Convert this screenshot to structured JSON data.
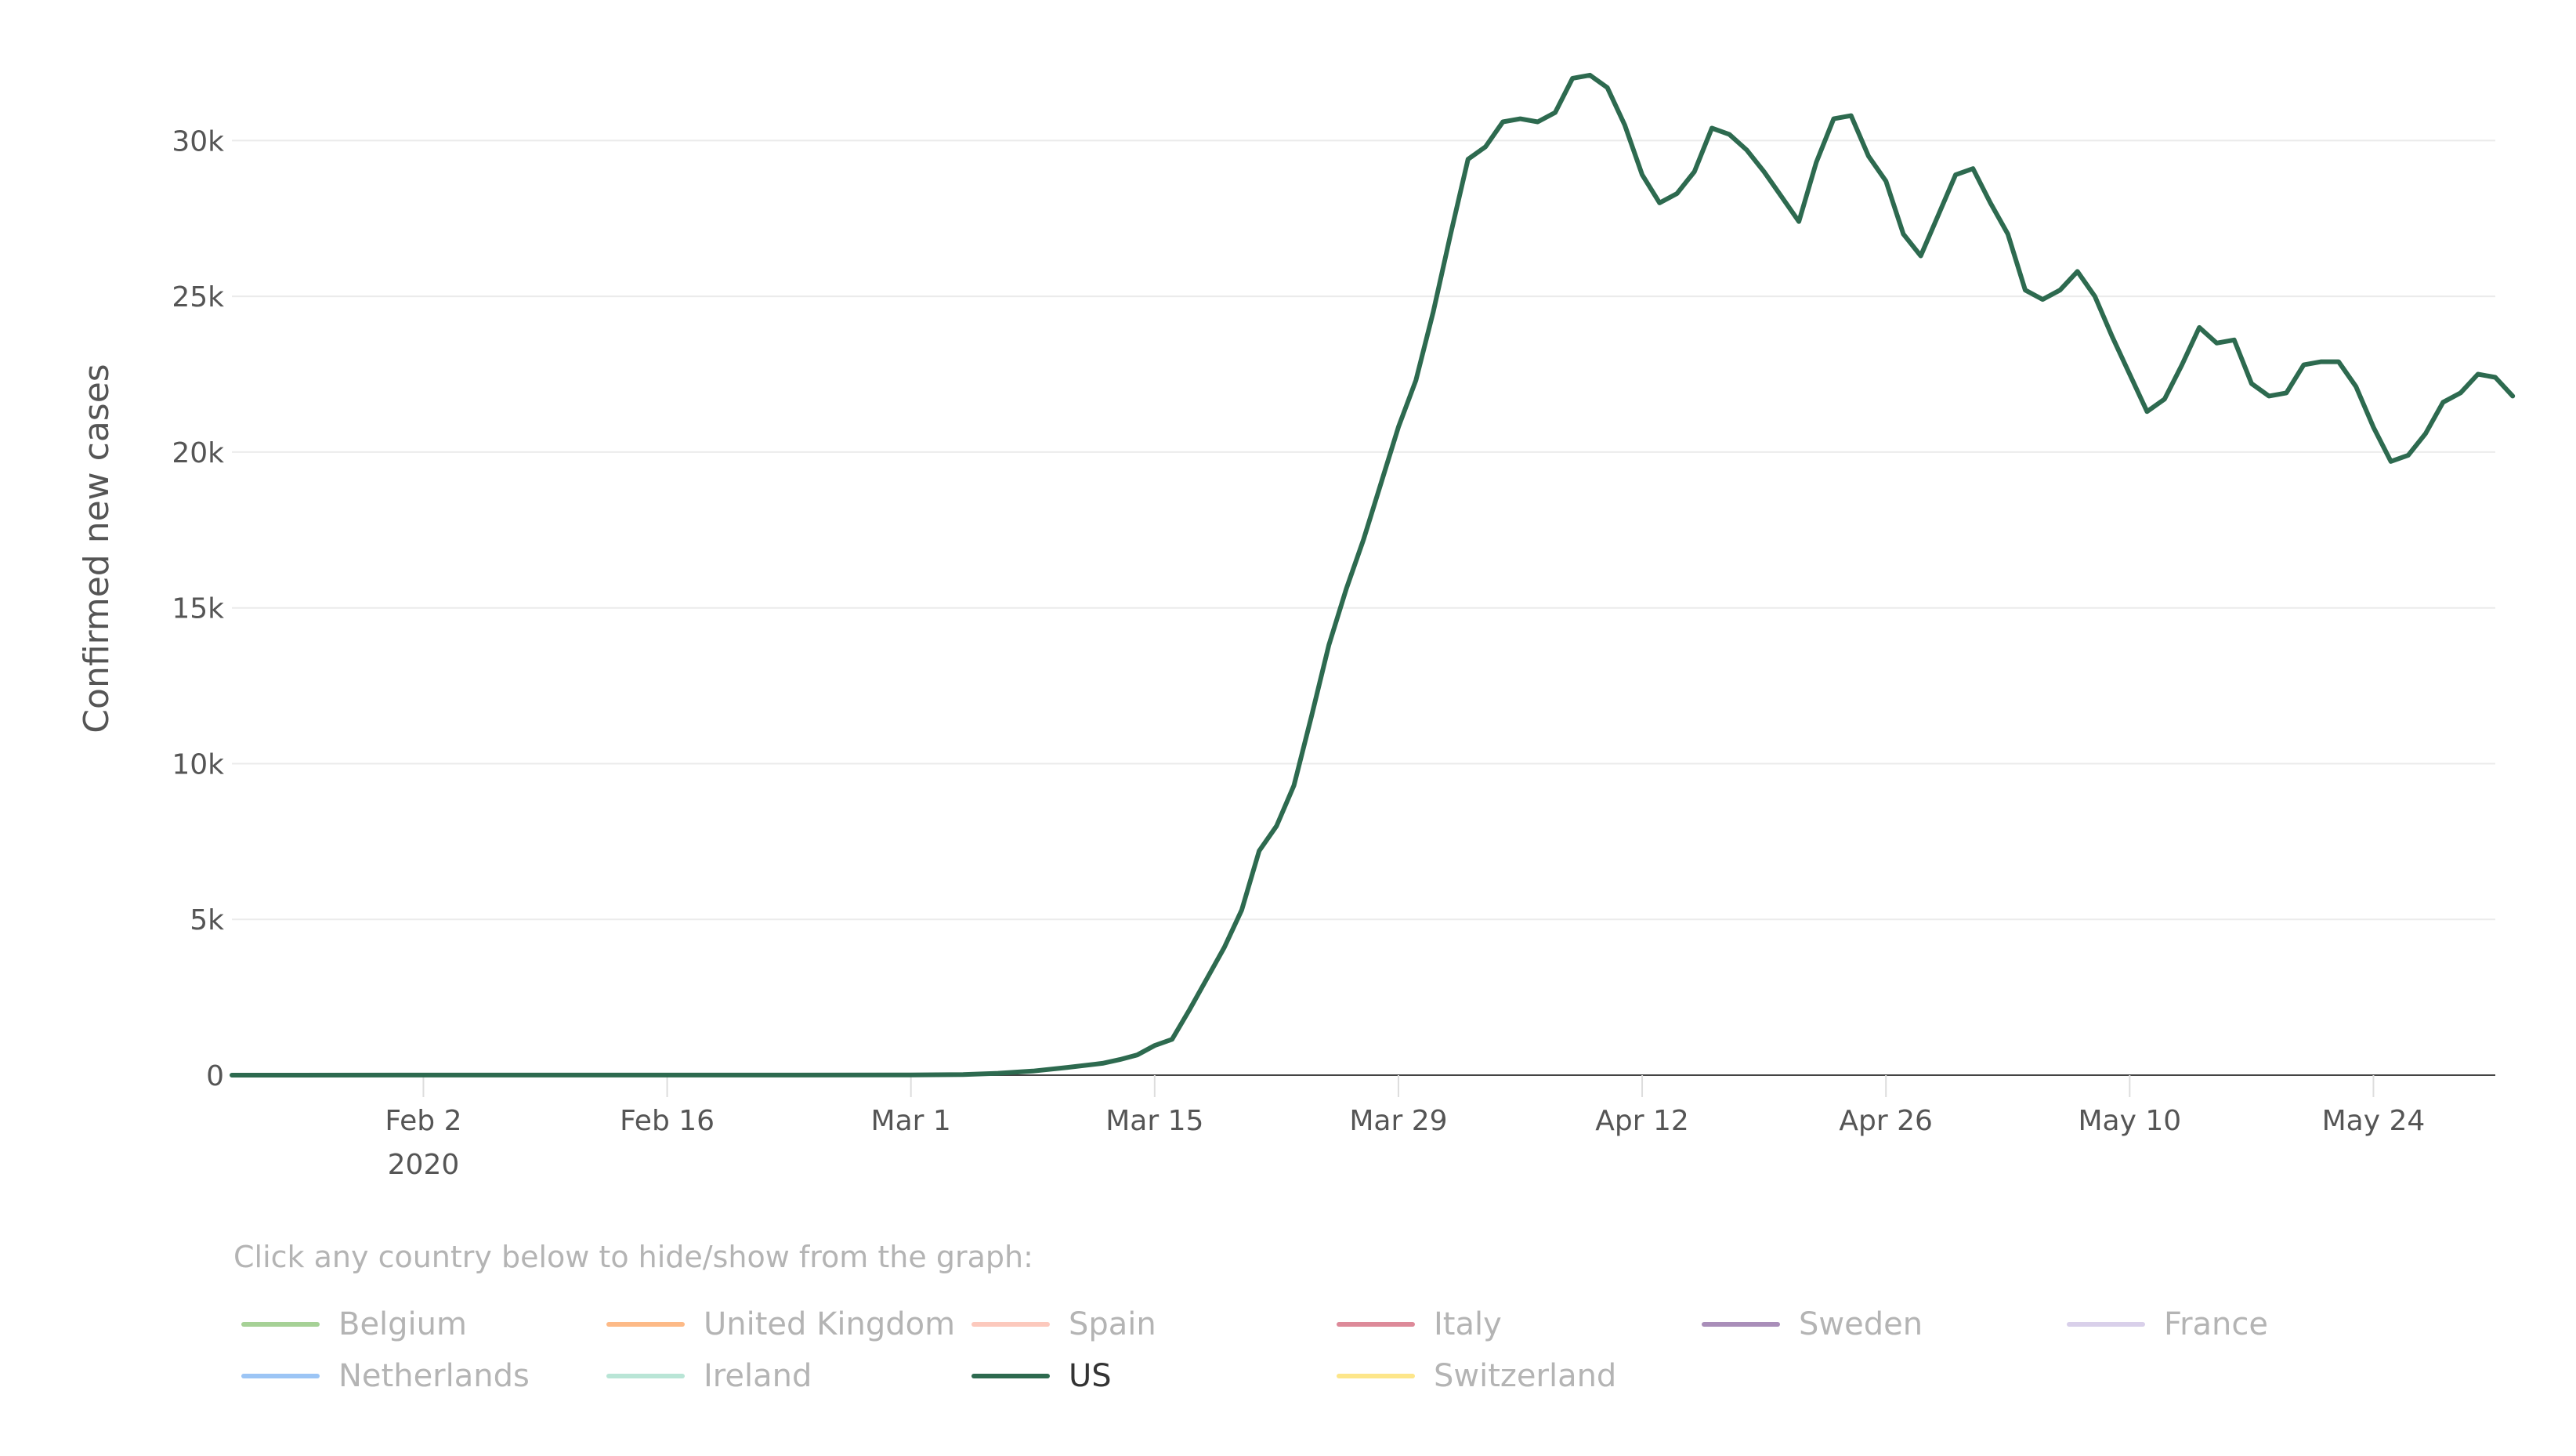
{
  "chart_data": {
    "type": "line",
    "ylabel": "Confirmed new cases",
    "ylim": [
      0,
      32500
    ],
    "yticks": [
      {
        "value": 0,
        "label": "0"
      },
      {
        "value": 5000,
        "label": "5k"
      },
      {
        "value": 10000,
        "label": "10k"
      },
      {
        "value": 15000,
        "label": "15k"
      },
      {
        "value": 20000,
        "label": "20k"
      },
      {
        "value": 25000,
        "label": "25k"
      },
      {
        "value": 30000,
        "label": "30k"
      }
    ],
    "xlim": [
      "2020-01-22",
      "2020-05-31"
    ],
    "xticks": [
      {
        "date": "2020-02-02",
        "label": "Feb 2",
        "sublabel": "2020"
      },
      {
        "date": "2020-02-16",
        "label": "Feb 16"
      },
      {
        "date": "2020-03-01",
        "label": "Mar 1"
      },
      {
        "date": "2020-03-15",
        "label": "Mar 15"
      },
      {
        "date": "2020-03-29",
        "label": "Mar 29"
      },
      {
        "date": "2020-04-12",
        "label": "Apr 12"
      },
      {
        "date": "2020-04-26",
        "label": "Apr 26"
      },
      {
        "date": "2020-05-10",
        "label": "May 10"
      },
      {
        "date": "2020-05-24",
        "label": "May 24"
      }
    ],
    "grid": true,
    "series": [
      {
        "name": "US",
        "color": "#2d6a4f",
        "points": [
          [
            "2020-01-22",
            0
          ],
          [
            "2020-02-01",
            2
          ],
          [
            "2020-02-15",
            3
          ],
          [
            "2020-03-01",
            5
          ],
          [
            "2020-03-04",
            20
          ],
          [
            "2020-03-06",
            60
          ],
          [
            "2020-03-08",
            130
          ],
          [
            "2020-03-10",
            250
          ],
          [
            "2020-03-12",
            380
          ],
          [
            "2020-03-13",
            500
          ],
          [
            "2020-03-14",
            650
          ],
          [
            "2020-03-15",
            950
          ],
          [
            "2020-03-16",
            1150
          ],
          [
            "2020-03-17",
            2100
          ],
          [
            "2020-03-18",
            3100
          ],
          [
            "2020-03-19",
            4100
          ],
          [
            "2020-03-20",
            5300
          ],
          [
            "2020-03-21",
            7200
          ],
          [
            "2020-03-22",
            8000
          ],
          [
            "2020-03-23",
            9300
          ],
          [
            "2020-03-24",
            11500
          ],
          [
            "2020-03-25",
            13800
          ],
          [
            "2020-03-26",
            15600
          ],
          [
            "2020-03-27",
            17200
          ],
          [
            "2020-03-28",
            19000
          ],
          [
            "2020-03-29",
            20800
          ],
          [
            "2020-03-30",
            22300
          ],
          [
            "2020-03-31",
            24500
          ],
          [
            "2020-04-01",
            27000
          ],
          [
            "2020-04-02",
            29400
          ],
          [
            "2020-04-03",
            29800
          ],
          [
            "2020-04-04",
            30600
          ],
          [
            "2020-04-05",
            30700
          ],
          [
            "2020-04-06",
            30600
          ],
          [
            "2020-04-07",
            30900
          ],
          [
            "2020-04-08",
            32000
          ],
          [
            "2020-04-09",
            32100
          ],
          [
            "2020-04-10",
            31700
          ],
          [
            "2020-04-11",
            30500
          ],
          [
            "2020-04-12",
            28900
          ],
          [
            "2020-04-13",
            28000
          ],
          [
            "2020-04-14",
            28300
          ],
          [
            "2020-04-15",
            29000
          ],
          [
            "2020-04-16",
            30400
          ],
          [
            "2020-04-17",
            30200
          ],
          [
            "2020-04-18",
            29700
          ],
          [
            "2020-04-19",
            29000
          ],
          [
            "2020-04-20",
            28200
          ],
          [
            "2020-04-21",
            27400
          ],
          [
            "2020-04-22",
            29300
          ],
          [
            "2020-04-23",
            30700
          ],
          [
            "2020-04-24",
            30800
          ],
          [
            "2020-04-25",
            29500
          ],
          [
            "2020-04-26",
            28700
          ],
          [
            "2020-04-27",
            27000
          ],
          [
            "2020-04-28",
            26300
          ],
          [
            "2020-04-29",
            27600
          ],
          [
            "2020-04-30",
            28900
          ],
          [
            "2020-05-01",
            29100
          ],
          [
            "2020-05-02",
            28000
          ],
          [
            "2020-05-03",
            27000
          ],
          [
            "2020-05-04",
            25200
          ],
          [
            "2020-05-05",
            24900
          ],
          [
            "2020-05-06",
            25200
          ],
          [
            "2020-05-07",
            25800
          ],
          [
            "2020-05-08",
            25000
          ],
          [
            "2020-05-09",
            23700
          ],
          [
            "2020-05-10",
            22500
          ],
          [
            "2020-05-11",
            21300
          ],
          [
            "2020-05-12",
            21700
          ],
          [
            "2020-05-13",
            22800
          ],
          [
            "2020-05-14",
            24000
          ],
          [
            "2020-05-15",
            23500
          ],
          [
            "2020-05-16",
            23600
          ],
          [
            "2020-05-17",
            22200
          ],
          [
            "2020-05-18",
            21800
          ],
          [
            "2020-05-19",
            21900
          ],
          [
            "2020-05-20",
            22800
          ],
          [
            "2020-05-21",
            22900
          ],
          [
            "2020-05-22",
            22900
          ],
          [
            "2020-05-23",
            22100
          ],
          [
            "2020-05-24",
            20800
          ],
          [
            "2020-05-25",
            19700
          ],
          [
            "2020-05-26",
            19900
          ],
          [
            "2020-05-27",
            20600
          ],
          [
            "2020-05-28",
            21600
          ],
          [
            "2020-05-29",
            21900
          ],
          [
            "2020-05-30",
            22500
          ],
          [
            "2020-05-31",
            22400
          ],
          [
            "2020-06-01",
            21800
          ]
        ]
      }
    ]
  },
  "legend": {
    "hint": "Click any country below to hide/show from the graph:",
    "items": [
      {
        "label": "Belgium",
        "color": "#a6d196",
        "active": false
      },
      {
        "label": "United Kingdom",
        "color": "#fdba87",
        "active": false
      },
      {
        "label": "Spain",
        "color": "#fcc9bd",
        "active": false
      },
      {
        "label": "Italy",
        "color": "#dd8a99",
        "active": false
      },
      {
        "label": "Sweden",
        "color": "#a98eb9",
        "active": false
      },
      {
        "label": "France",
        "color": "#d9d0ea",
        "active": false
      },
      {
        "label": "Netherlands",
        "color": "#9cc5f5",
        "active": false
      },
      {
        "label": "Ireland",
        "color": "#b9e5d6",
        "active": false
      },
      {
        "label": "US",
        "color": "#2d6a4f",
        "active": true
      },
      {
        "label": "Switzerland",
        "color": "#fde68a",
        "active": false
      }
    ]
  }
}
